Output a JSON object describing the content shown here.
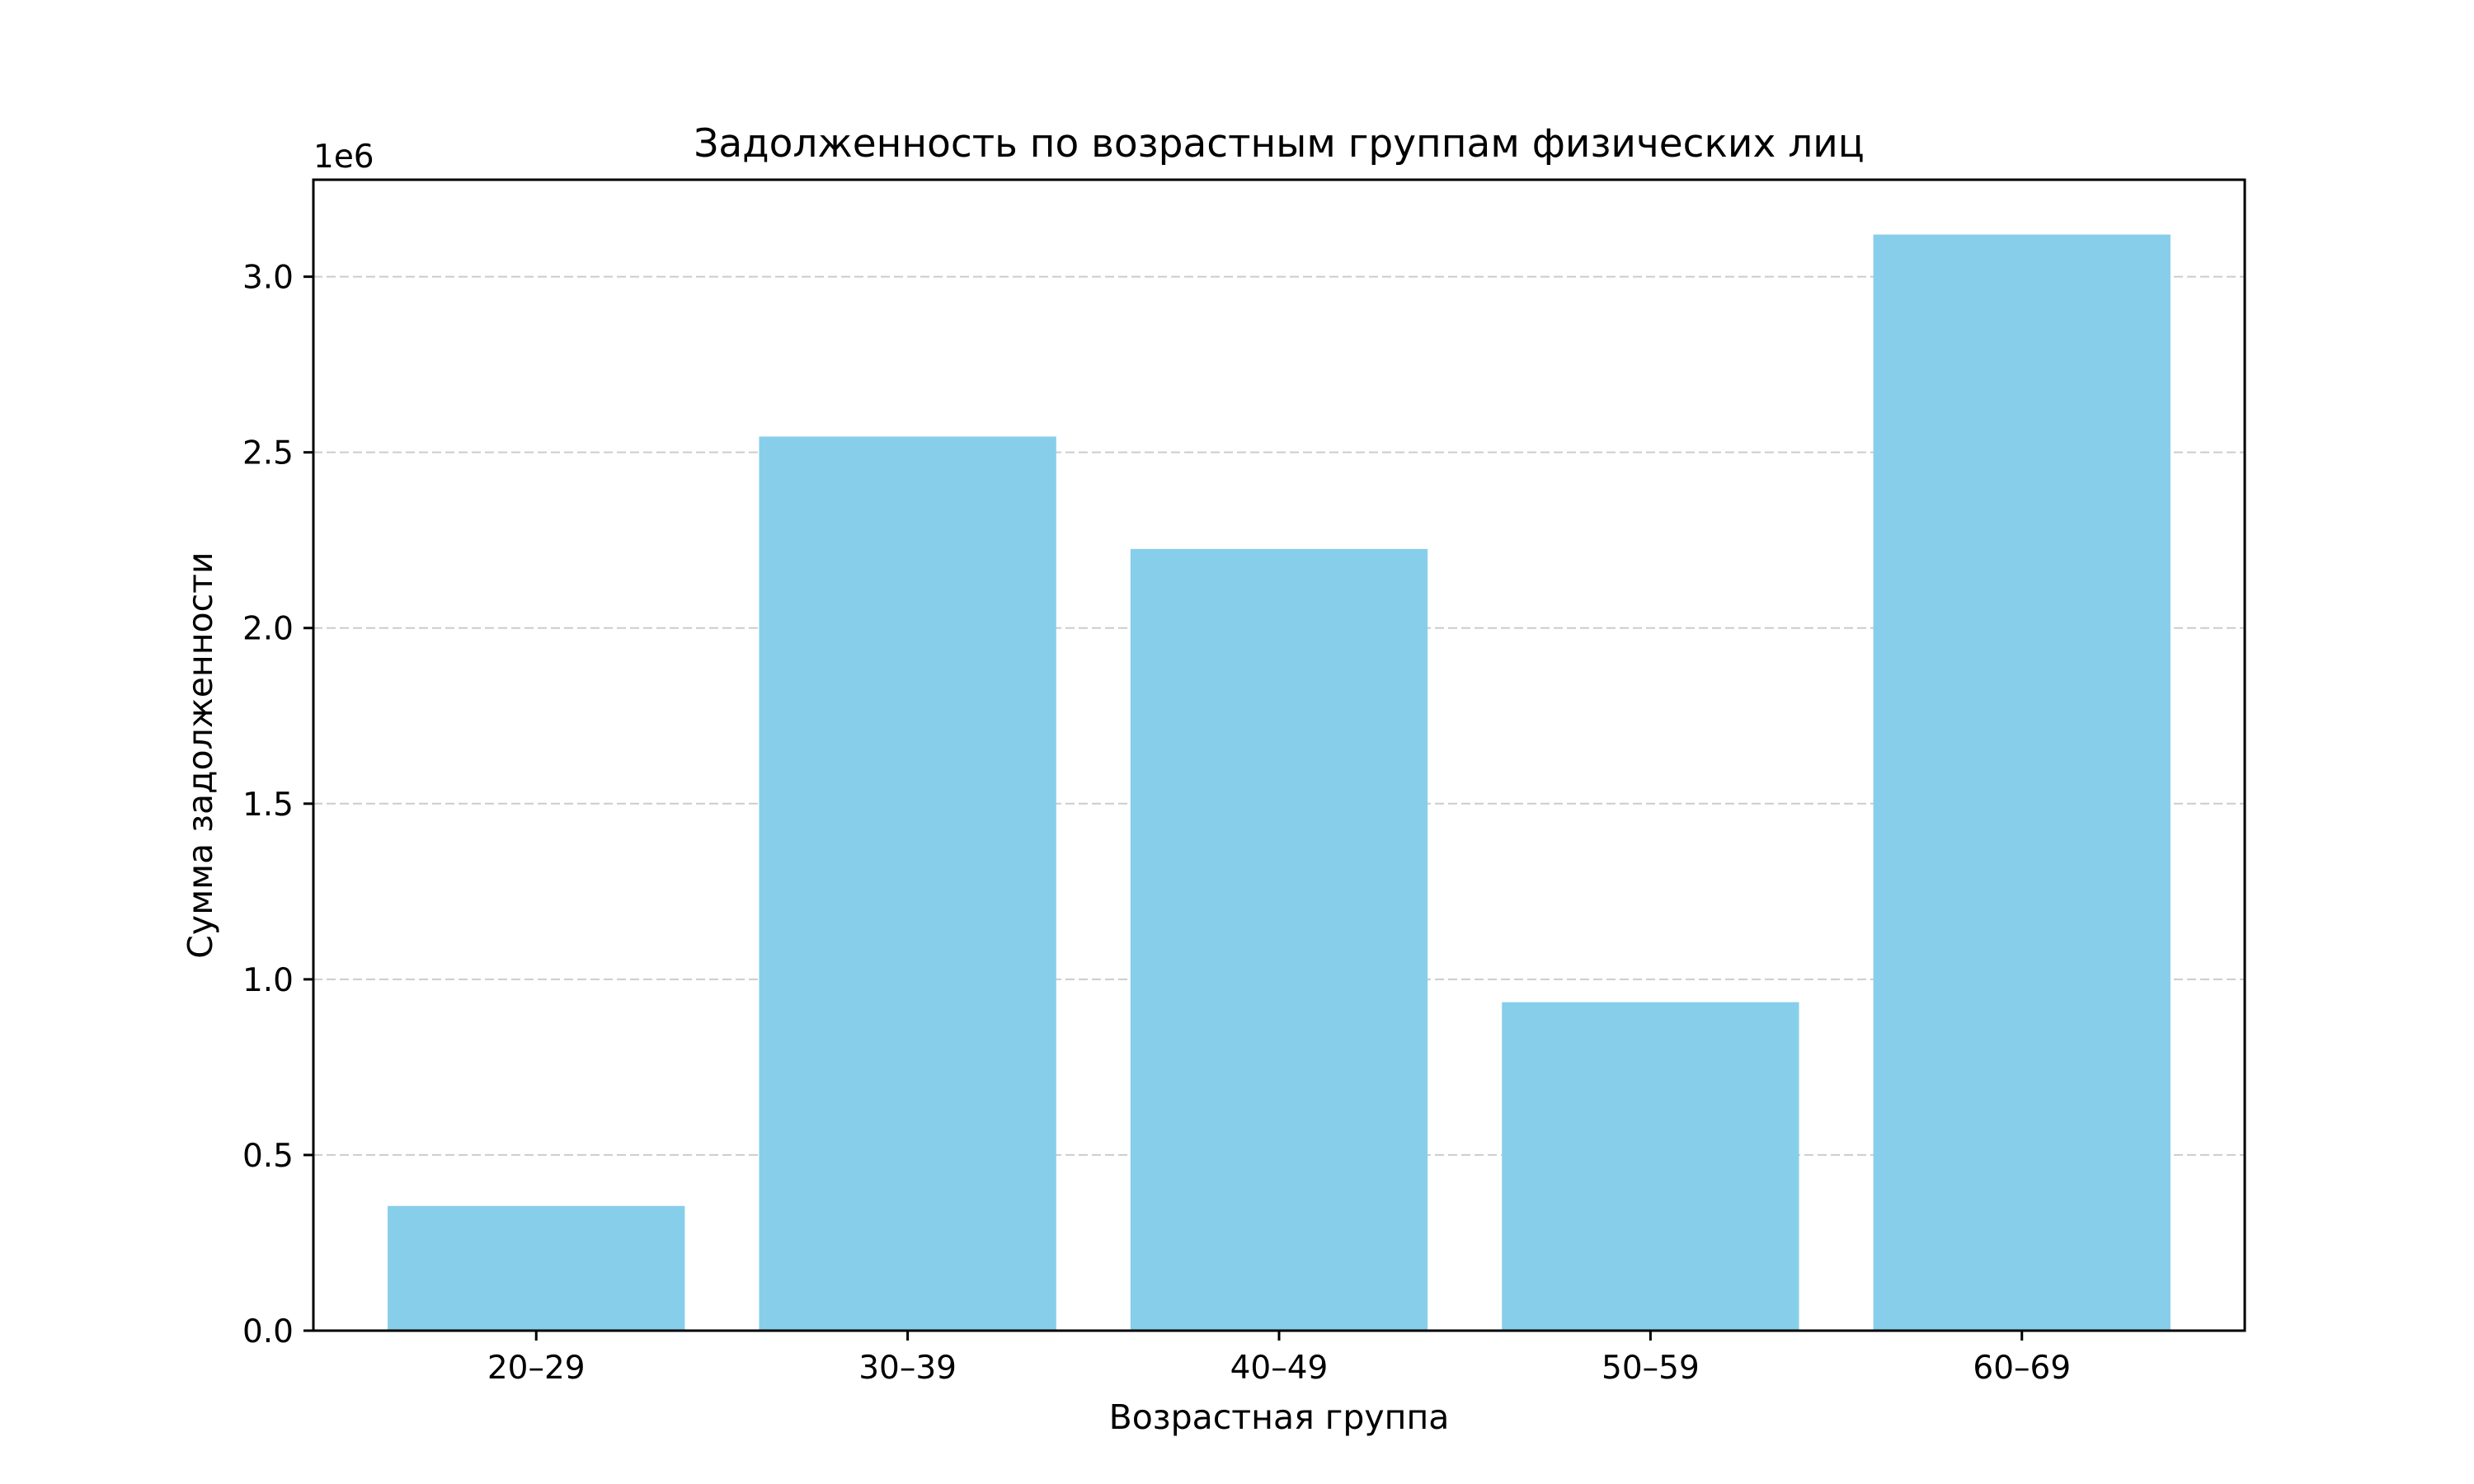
{
  "chart_data": {
    "type": "bar",
    "title": "Задолженность по возрастным группам физических лиц",
    "xlabel": "Возрастная группа",
    "ylabel": "Сумма задолженности",
    "y_offset_label": "1e6",
    "categories": [
      "20–29",
      "30–39",
      "40–49",
      "50–59",
      "60–69"
    ],
    "values": [
      355000,
      2545000,
      2225000,
      935000,
      3120000
    ],
    "ylim": [
      0,
      3276000
    ],
    "yticks": [
      0,
      500000,
      1000000,
      1500000,
      2000000,
      2500000,
      3000000
    ],
    "ytick_labels": [
      "0.0",
      "0.5",
      "1.0",
      "1.5",
      "2.0",
      "2.5",
      "3.0"
    ],
    "bar_color": "#87ceeb",
    "grid": "y-dashed",
    "legend": "none"
  }
}
